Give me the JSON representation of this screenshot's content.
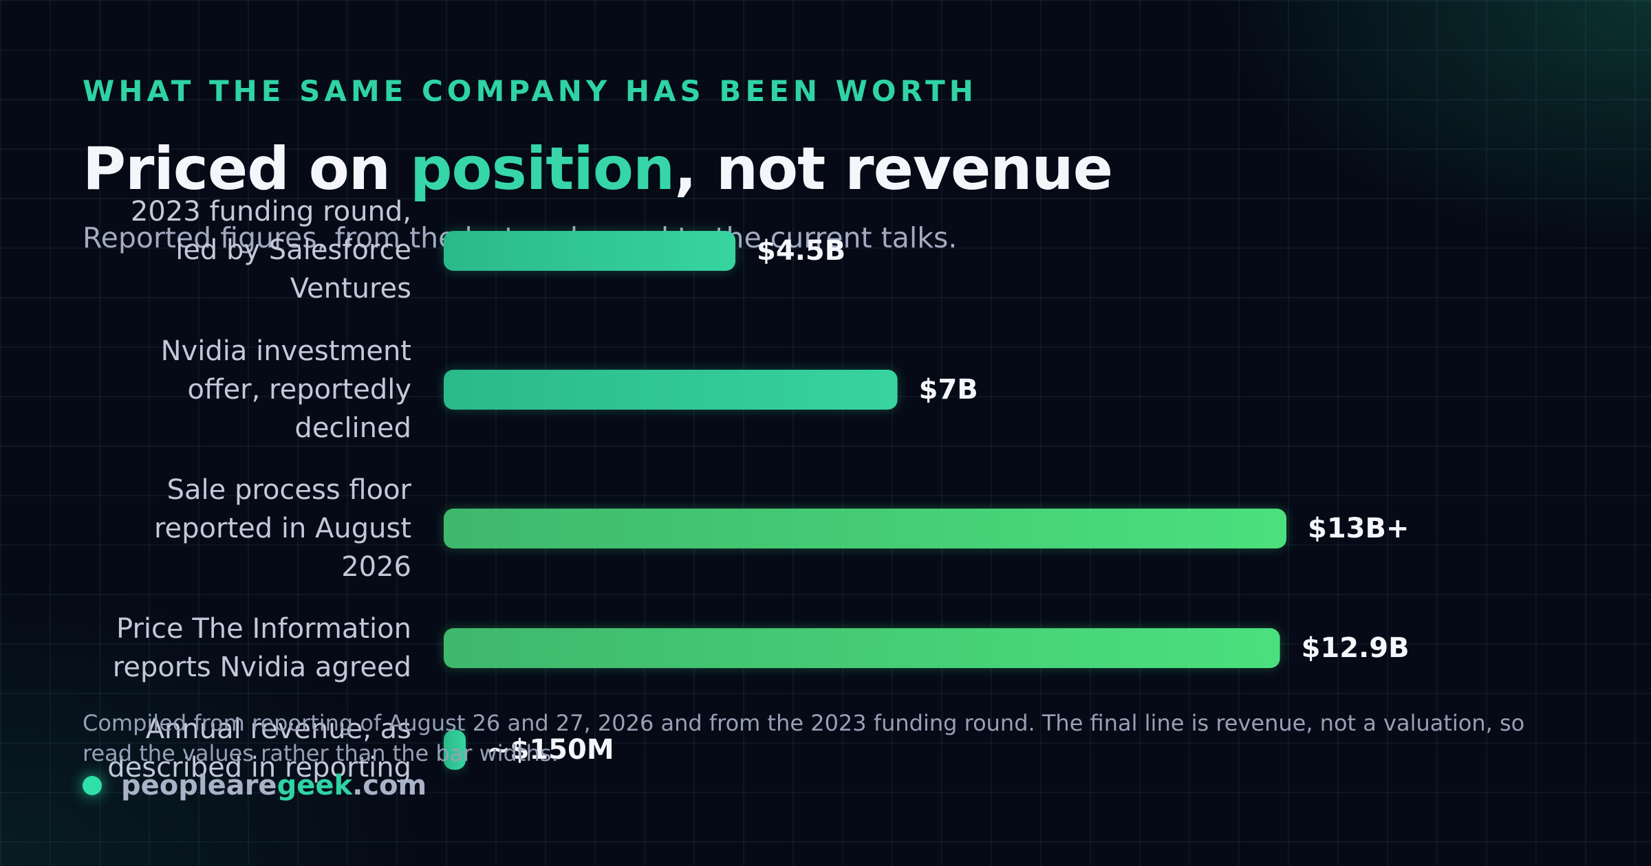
{
  "header": {
    "eyebrow": "WHAT THE SAME COMPANY HAS BEEN WORTH",
    "title_before": "Priced on ",
    "title_accent": "position",
    "title_after": ", not revenue",
    "subtitle": "Reported figures, from the last real round to the current talks."
  },
  "chart_data": {
    "type": "bar",
    "orientation": "horizontal",
    "unit": "USD",
    "categories": [
      "2023 funding round, led by Salesforce Ventures",
      "Nvidia investment offer, reportedly declined",
      "Sale process floor reported in August 2026",
      "Price The Information reports Nvidia agreed",
      "Annual revenue, as described in reporting"
    ],
    "values": [
      4.5,
      7,
      13,
      12.9,
      0.15
    ],
    "value_labels": [
      "$4.5B",
      "$7B",
      "$13B+",
      "$12.9B",
      "~$150M"
    ],
    "title": "",
    "xlabel": "",
    "ylabel": "",
    "xlim": [
      0,
      13
    ],
    "grid": false,
    "legend": "none",
    "colors": {
      "bar_start": [
        "#2bb98a",
        "#2bb98a",
        "#3fb86c",
        "#3fb86c",
        "#2bb98a"
      ],
      "bar_end": [
        "#37d4a0",
        "#37d4a0",
        "#4be07e",
        "#4be07e",
        "#37d4a0"
      ],
      "category_label": "#c3c8da",
      "value_label": "#f4f6fb"
    }
  },
  "footer": {
    "note": "Compiled from reporting of August 26 and 27, 2026 and from the 2023 funding round. The final line is revenue, not a valuation, so read the values rather than the bar widths.",
    "brand_prefix": "peopleare",
    "brand_accent": "geek",
    "brand_suffix": ".com"
  },
  "colors": {
    "background": "#050a16",
    "accent": "#2fd3a4"
  }
}
